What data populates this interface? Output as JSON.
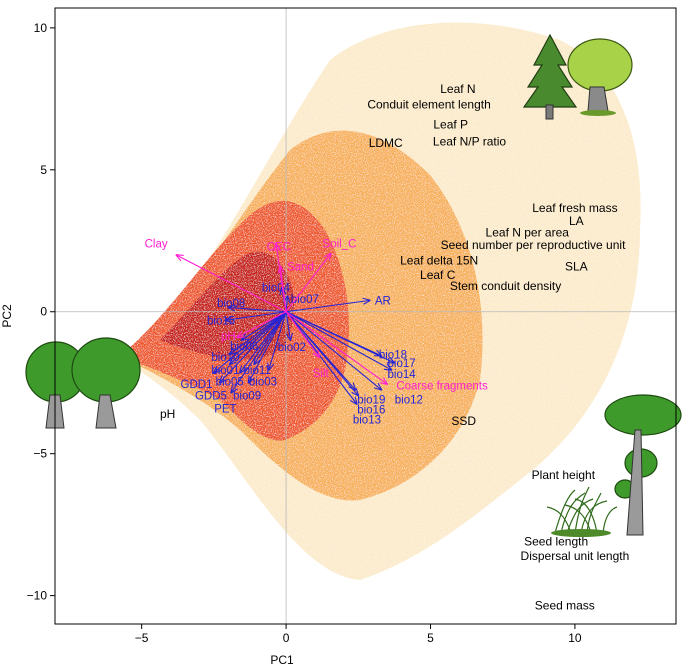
{
  "chart_data": {
    "type": "scatter",
    "title": "",
    "xlabel": "PC1",
    "ylabel": "PC2",
    "xlim": [
      -8,
      13.5
    ],
    "ylim": [
      -11,
      10.7
    ],
    "xticks": [
      -5,
      0,
      5,
      10
    ],
    "yticks": [
      -10,
      -5,
      0,
      5,
      10
    ],
    "xtick_labels": [
      "−5",
      "0",
      "5",
      "10"
    ],
    "ytick_labels": [
      "−10",
      "−5",
      "0",
      "5",
      "10"
    ],
    "origin_lines": true,
    "colors": {
      "density_low": "#f7d9a0",
      "density_mid": "#f5a84a",
      "density_high": "#e8482b",
      "density_peak": "#c41a1e",
      "climate": "#2424d6",
      "soil": "#ff1fd2",
      "trait": "#000000"
    },
    "climate_vectors": [
      {
        "label": "bio04",
        "x": -0.15,
        "y": 0.85,
        "lx": -0.35,
        "ly": 0.85
      },
      {
        "label": "bio07",
        "x": 0.05,
        "y": 0.55,
        "lx": 0.65,
        "ly": 0.45
      },
      {
        "label": "AR",
        "x": 2.9,
        "y": 0.4,
        "lx": 3.35,
        "ly": 0.4
      },
      {
        "label": "bio08",
        "x": -2.0,
        "y": 0.15,
        "lx": -1.9,
        "ly": 0.3
      },
      {
        "label": "bio15",
        "x": -2.1,
        "y": -0.3,
        "lx": -2.25,
        "ly": -0.3
      },
      {
        "label": "bio06",
        "x": -1.55,
        "y": -1.0,
        "lx": -1.45,
        "ly": -1.2
      },
      {
        "label": "bio02",
        "x": 0.15,
        "y": -1.0,
        "lx": 0.2,
        "ly": -1.25
      },
      {
        "label": "bio10",
        "x": -1.95,
        "y": -1.5,
        "lx": -2.1,
        "ly": -1.6
      },
      {
        "label": "bio01",
        "x": -1.95,
        "y": -1.85,
        "lx": -2.1,
        "ly": -2.05
      },
      {
        "label": "bio11",
        "x": -1.1,
        "y": -1.85,
        "lx": -1.0,
        "ly": -2.05
      },
      {
        "label": "GDD1",
        "x": -2.5,
        "y": -2.15,
        "lx": -3.1,
        "ly": -2.55
      },
      {
        "label": "bio05",
        "x": -1.6,
        "y": -2.15,
        "lx": -1.95,
        "ly": -2.45
      },
      {
        "label": "bio03",
        "x": -0.6,
        "y": -2.05,
        "lx": -0.8,
        "ly": -2.45
      },
      {
        "label": "GDD5",
        "x": -2.3,
        "y": -2.5,
        "lx": -2.6,
        "ly": -2.95
      },
      {
        "label": "bio09",
        "x": -1.3,
        "y": -2.5,
        "lx": -1.35,
        "ly": -2.95
      },
      {
        "label": "PET",
        "x": -1.9,
        "y": -2.85,
        "lx": -2.1,
        "ly": -3.4
      },
      {
        "label": "bio18",
        "x": 3.3,
        "y": -1.55,
        "lx": 3.7,
        "ly": -1.5
      },
      {
        "label": "bio17",
        "x": 3.75,
        "y": -1.8,
        "lx": 4.0,
        "ly": -1.8
      },
      {
        "label": "bio14",
        "x": 3.65,
        "y": -2.05,
        "lx": 4.0,
        "ly": -2.2
      },
      {
        "label": "bio19",
        "x": 2.4,
        "y": -2.75,
        "lx": 2.95,
        "ly": -3.1
      },
      {
        "label": "bio12",
        "x": 3.3,
        "y": -2.75,
        "lx": 4.25,
        "ly": -3.1
      },
      {
        "label": "bio16",
        "x": 2.5,
        "y": -2.95,
        "lx": 2.95,
        "ly": -3.45
      },
      {
        "label": "bio13",
        "x": 2.45,
        "y": -3.25,
        "lx": 2.8,
        "ly": -3.8
      }
    ],
    "soil_vectors": [
      {
        "label": "Clay",
        "x": -3.8,
        "y": 2.0,
        "lx": -4.5,
        "ly": 2.4
      },
      {
        "label": "CEC",
        "x": -0.35,
        "y": 2.4,
        "lx": -0.25,
        "ly": 2.3
      },
      {
        "label": "Soil_C",
        "x": 1.55,
        "y": 2.05,
        "lx": 1.85,
        "ly": 2.4
      },
      {
        "label": "Sand",
        "x": -0.2,
        "y": 1.6,
        "lx": 0.5,
        "ly": 1.6
      },
      {
        "label": "pH",
        "x": -1.7,
        "y": -0.9,
        "lx": -2.0,
        "ly": -0.85
      },
      {
        "label": "Silt",
        "x": 1.15,
        "y": -1.6,
        "lx": 1.2,
        "ly": -2.15
      },
      {
        "label": "Coarse fragments",
        "x": 3.5,
        "y": -2.55,
        "lx": 5.4,
        "ly": -2.6
      }
    ],
    "trait_labels": [
      {
        "label": "Leaf N",
        "x": 5.95,
        "y": 7.85
      },
      {
        "label": "Conduit element length",
        "x": 4.95,
        "y": 7.3
      },
      {
        "label": "Leaf P",
        "x": 5.7,
        "y": 6.6
      },
      {
        "label": "Leaf N/P ratio",
        "x": 6.35,
        "y": 6.0
      },
      {
        "label": "LDMC",
        "x": 3.45,
        "y": 5.95
      },
      {
        "label": "Leaf fresh mass",
        "x": 10.0,
        "y": 3.65
      },
      {
        "label": "LA",
        "x": 10.05,
        "y": 3.2
      },
      {
        "label": "Leaf N per area",
        "x": 8.35,
        "y": 2.8
      },
      {
        "label": "Seed number per reproductive unit",
        "x": 8.55,
        "y": 2.35
      },
      {
        "label": "Leaf delta 15N",
        "x": 5.3,
        "y": 1.8
      },
      {
        "label": "SLA",
        "x": 10.05,
        "y": 1.6
      },
      {
        "label": "Leaf C",
        "x": 5.25,
        "y": 1.3
      },
      {
        "label": "Stem conduit density",
        "x": 7.6,
        "y": 0.9
      },
      {
        "label": "pH",
        "x": -4.1,
        "y": -3.6
      },
      {
        "label": "SSD",
        "x": 6.15,
        "y": -3.85
      },
      {
        "label": "Plant height",
        "x": 9.6,
        "y": -5.75
      },
      {
        "label": "Seed length",
        "x": 9.35,
        "y": -8.1
      },
      {
        "label": "Dispersal unit length",
        "x": 10.0,
        "y": -8.6
      },
      {
        "label": "Seed mass",
        "x": 9.65,
        "y": -10.35
      }
    ]
  }
}
